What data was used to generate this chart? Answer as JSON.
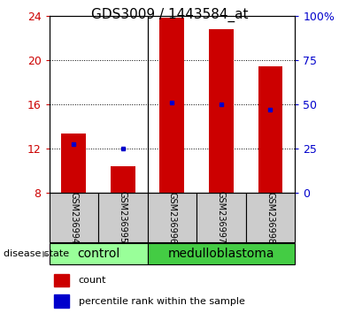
{
  "title": "GDS3009 / 1443584_at",
  "samples": [
    "GSM236994",
    "GSM236995",
    "GSM236996",
    "GSM236997",
    "GSM236998"
  ],
  "counts": [
    13.3,
    10.4,
    23.8,
    22.8,
    19.4
  ],
  "percentile_ranks_pct": [
    27.5,
    25.0,
    51.0,
    50.0,
    47.0
  ],
  "ylim": [
    8,
    24
  ],
  "yticks": [
    8,
    12,
    16,
    20,
    24
  ],
  "y2lim": [
    0,
    100
  ],
  "y2ticks": [
    0,
    25,
    50,
    75,
    100
  ],
  "bar_color": "#cc0000",
  "dot_color": "#0000cc",
  "bar_width": 0.5,
  "control_color": "#99ff99",
  "medulloblastoma_color": "#44cc44",
  "title_fontsize": 11,
  "tick_fontsize": 9,
  "group_fontsize": 10,
  "legend_fontsize": 8,
  "n_control": 2,
  "n_samples": 5
}
